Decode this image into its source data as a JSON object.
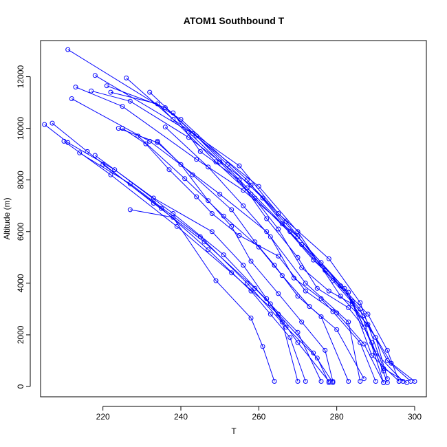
{
  "chart_data": {
    "type": "line",
    "title": "ATOM1 Southbound T",
    "xlabel": "T",
    "ylabel": "Altitude (m)",
    "xlim": [
      204,
      303
    ],
    "ylim": [
      -400,
      13400
    ],
    "x_ticks": [
      220,
      240,
      260,
      280,
      300
    ],
    "y_ticks": [
      0,
      2000,
      4000,
      6000,
      8000,
      10000,
      12000
    ],
    "color": "#0000ff",
    "markers": "open-circle",
    "grid": false,
    "legend": "none",
    "series": [
      {
        "values": [
          [
            211,
            13050
          ],
          [
            240,
            10350
          ],
          [
            257,
            8000
          ],
          [
            268,
            6000
          ],
          [
            279,
            4100
          ],
          [
            287,
            2750
          ],
          [
            293,
            1000
          ],
          [
            299,
            200
          ]
        ]
      },
      {
        "values": [
          [
            218,
            12050
          ],
          [
            243,
            9800
          ],
          [
            260,
            7750
          ],
          [
            270,
            6000
          ],
          [
            281,
            3500
          ],
          [
            288,
            2400
          ],
          [
            294,
            900
          ],
          [
            300,
            200
          ]
        ]
      },
      {
        "values": [
          [
            221,
            11650
          ],
          [
            236,
            10800
          ],
          [
            252,
            8600
          ],
          [
            261,
            7300
          ],
          [
            276,
            4800
          ],
          [
            284,
            3300
          ],
          [
            290,
            1300
          ],
          [
            297,
            200
          ]
        ]
      },
      {
        "values": [
          [
            226,
            11950
          ],
          [
            238,
            10350
          ],
          [
            255,
            8550
          ],
          [
            265,
            6700
          ],
          [
            278,
            4950
          ],
          [
            286,
            3250
          ],
          [
            292,
            700
          ],
          [
            298,
            150
          ]
        ]
      },
      {
        "values": [
          [
            213,
            11600
          ],
          [
            225,
            10850
          ],
          [
            244,
            8800
          ],
          [
            256,
            7600
          ],
          [
            270,
            5800
          ],
          [
            282,
            3800
          ],
          [
            289,
            1700
          ],
          [
            293,
            150
          ]
        ]
      },
      {
        "values": [
          [
            212,
            11150
          ],
          [
            232,
            9500
          ],
          [
            250,
            7450
          ],
          [
            262,
            6000
          ],
          [
            272,
            4000
          ],
          [
            283,
            2500
          ],
          [
            286,
            200
          ]
        ]
      },
      {
        "values": [
          [
            217,
            11450
          ],
          [
            227,
            11050
          ],
          [
            242,
            9650
          ],
          [
            258,
            7800
          ],
          [
            267,
            6400
          ],
          [
            277,
            4500
          ],
          [
            286,
            3000
          ],
          [
            292,
            150
          ]
        ]
      },
      {
        "values": [
          [
            222,
            11400
          ],
          [
            234,
            10950
          ],
          [
            249,
            8700
          ],
          [
            259,
            7300
          ],
          [
            271,
            5500
          ],
          [
            283,
            3650
          ],
          [
            289,
            1200
          ],
          [
            296,
            200
          ]
        ]
      },
      {
        "values": [
          [
            207,
            10200
          ],
          [
            216,
            9100
          ],
          [
            233,
            7100
          ],
          [
            246,
            5600
          ],
          [
            259,
            3800
          ],
          [
            270,
            2100
          ],
          [
            276,
            200
          ]
        ]
      },
      {
        "values": [
          [
            205,
            10150
          ],
          [
            211,
            9450
          ],
          [
            223,
            8400
          ],
          [
            238,
            6700
          ],
          [
            251,
            5100
          ],
          [
            263,
            3200
          ],
          [
            270,
            1700
          ],
          [
            278,
            200
          ]
        ]
      },
      {
        "values": [
          [
            210,
            9500
          ],
          [
            222,
            8200
          ],
          [
            239,
            6200
          ],
          [
            253,
            4400
          ],
          [
            265,
            2800
          ],
          [
            274,
            1300
          ],
          [
            279,
            150
          ]
        ]
      },
      {
        "values": [
          [
            214,
            9050
          ],
          [
            227,
            7850
          ],
          [
            245,
            5800
          ],
          [
            257,
            4000
          ],
          [
            267,
            2300
          ],
          [
            275,
            1100
          ],
          [
            278,
            150
          ]
        ]
      },
      {
        "values": [
          [
            218,
            8950
          ],
          [
            233,
            7300
          ],
          [
            248,
            6000
          ],
          [
            256,
            4700
          ],
          [
            262,
            3400
          ],
          [
            266,
            2500
          ],
          [
            270,
            200
          ]
        ]
      },
      {
        "values": [
          [
            220,
            8600
          ],
          [
            235,
            6900
          ],
          [
            247,
            5300
          ],
          [
            258,
            3700
          ],
          [
            263,
            2800
          ],
          [
            268,
            1900
          ],
          [
            272,
            200
          ]
        ]
      },
      {
        "values": [
          [
            224,
            10000
          ],
          [
            234,
            9450
          ],
          [
            243,
            8200
          ],
          [
            253,
            6850
          ],
          [
            259,
            5600
          ],
          [
            264,
            4700
          ],
          [
            270,
            3500
          ],
          [
            276,
            2700
          ],
          [
            283,
            200
          ]
        ]
      },
      {
        "values": [
          [
            229,
            9700
          ],
          [
            241,
            8050
          ],
          [
            251,
            6600
          ],
          [
            260,
            5400
          ],
          [
            266,
            4300
          ],
          [
            273,
            3100
          ],
          [
            280,
            2200
          ],
          [
            287,
            300
          ]
        ]
      },
      {
        "values": [
          [
            232,
            11400
          ],
          [
            244,
            9700
          ],
          [
            257,
            7700
          ],
          [
            266,
            6300
          ],
          [
            274,
            4900
          ],
          [
            281,
            3900
          ],
          [
            288,
            2800
          ],
          [
            293,
            1400
          ],
          [
            296,
            200
          ]
        ]
      },
      {
        "values": [
          [
            227,
            6850
          ],
          [
            238,
            6550
          ],
          [
            249,
            4100
          ],
          [
            258,
            2650
          ],
          [
            261,
            1550
          ],
          [
            264,
            200
          ]
        ]
      },
      {
        "values": [
          [
            236,
            10050
          ],
          [
            247,
            8500
          ],
          [
            256,
            7000
          ],
          [
            263,
            5800
          ],
          [
            269,
            4200
          ],
          [
            276,
            3400
          ],
          [
            279,
            2900
          ],
          [
            286,
            1700
          ],
          [
            290,
            200
          ]
        ]
      },
      {
        "values": [
          [
            238,
            10600
          ],
          [
            245,
            9100
          ],
          [
            255,
            8000
          ],
          [
            262,
            6500
          ],
          [
            270,
            5000
          ],
          [
            275,
            3800
          ],
          [
            283,
            3050
          ],
          [
            287,
            2300
          ],
          [
            292,
            600
          ]
        ]
      },
      {
        "values": [
          [
            242,
            9850
          ],
          [
            250,
            8700
          ],
          [
            258,
            7450
          ],
          [
            265,
            6100
          ],
          [
            271,
            4600
          ],
          [
            278,
            3700
          ],
          [
            284,
            3200
          ],
          [
            290,
            1900
          ],
          [
            293,
            300
          ]
        ]
      },
      {
        "values": [
          [
            225,
            10000
          ],
          [
            231,
            9400
          ],
          [
            237,
            8400
          ],
          [
            244,
            7350
          ],
          [
            248,
            6700
          ],
          [
            255,
            5850
          ],
          [
            265,
            5050
          ],
          [
            272,
            3700
          ],
          [
            280,
            2850
          ],
          [
            287,
            1650
          ],
          [
            292,
            150
          ]
        ]
      },
      {
        "values": [
          [
            234,
            9500
          ],
          [
            240,
            8600
          ],
          [
            247,
            7200
          ],
          [
            253,
            6200
          ],
          [
            258,
            4850
          ],
          [
            265,
            3600
          ],
          [
            271,
            2500
          ],
          [
            277,
            1400
          ],
          [
            279,
            200
          ]
        ]
      }
    ]
  }
}
